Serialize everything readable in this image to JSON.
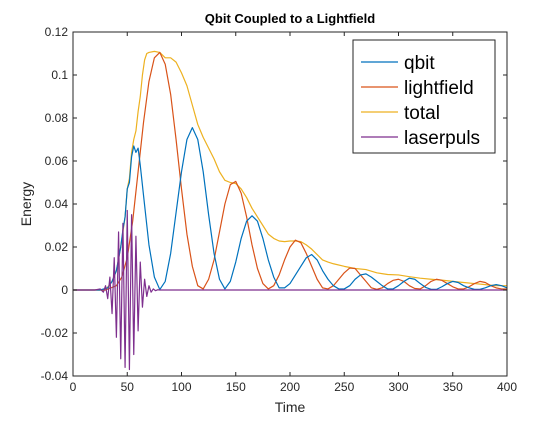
{
  "chart_data": {
    "type": "line",
    "title": "Qbit Coupled to a Lightfield",
    "xlabel": "Time",
    "ylabel": "Energy",
    "xlim": [
      0,
      400
    ],
    "ylim": [
      -0.04,
      0.12
    ],
    "xticks": [
      0,
      50,
      100,
      150,
      200,
      250,
      300,
      350,
      400
    ],
    "xtick_labels": [
      "0",
      "50",
      "100",
      "150",
      "200",
      "250",
      "300",
      "350",
      "400"
    ],
    "yticks": [
      -0.04,
      -0.02,
      0,
      0.02,
      0.04,
      0.06,
      0.08,
      0.1,
      0.12
    ],
    "ytick_labels": [
      "-0.04",
      "-0.02",
      "0",
      "0.02",
      "0.04",
      "0.06",
      "0.08",
      "0.1",
      "0.12"
    ],
    "grid": false,
    "legend_position": "top-right",
    "series": [
      {
        "name": "qbit",
        "color": "#0072BD",
        "x": [
          0,
          25,
          32,
          36,
          40,
          44,
          46,
          48,
          50,
          52,
          54,
          56,
          58,
          60,
          62,
          65,
          70,
          75,
          80,
          85,
          90,
          95,
          100,
          105,
          110,
          115,
          120,
          125,
          130,
          135,
          140,
          145,
          150,
          155,
          160,
          165,
          170,
          175,
          180,
          185,
          190,
          195,
          200,
          205,
          210,
          215,
          220,
          225,
          230,
          235,
          240,
          245,
          250,
          255,
          260,
          265,
          270,
          275,
          280,
          285,
          290,
          295,
          300,
          305,
          310,
          315,
          320,
          325,
          330,
          335,
          340,
          345,
          350,
          355,
          360,
          365,
          370,
          375,
          380,
          385,
          390,
          395,
          400
        ],
        "y": [
          0,
          0,
          0.001,
          0.004,
          0.009,
          0.02,
          0.028,
          0.034,
          0.047,
          0.05,
          0.062,
          0.067,
          0.064,
          0.066,
          0.058,
          0.044,
          0.021,
          0.006,
          0.0002,
          0.004,
          0.017,
          0.036,
          0.055,
          0.07,
          0.0755,
          0.07,
          0.055,
          0.035,
          0.017,
          0.005,
          0.0005,
          0.004,
          0.013,
          0.024,
          0.032,
          0.0345,
          0.032,
          0.024,
          0.014,
          0.006,
          0.001,
          0.001,
          0.003,
          0.007,
          0.011,
          0.015,
          0.0165,
          0.014,
          0.009,
          0.005,
          0.002,
          0.0005,
          0.0005,
          0.002,
          0.005,
          0.007,
          0.0075,
          0.006,
          0.004,
          0.002,
          0.0005,
          0.0005,
          0.002,
          0.004,
          0.0055,
          0.005,
          0.003,
          0.0012,
          0.0003,
          0.0003,
          0.0015,
          0.003,
          0.004,
          0.0035,
          0.002,
          0.001,
          0.0003,
          0.0003,
          0.001,
          0.002,
          0.0025,
          0.002,
          0.001
        ]
      },
      {
        "name": "lightfield",
        "color": "#D95319",
        "x": [
          0,
          30,
          40,
          45,
          50,
          55,
          60,
          65,
          70,
          75,
          80,
          85,
          90,
          95,
          100,
          105,
          110,
          115,
          120,
          125,
          130,
          135,
          140,
          145,
          150,
          155,
          160,
          165,
          170,
          175,
          180,
          185,
          190,
          195,
          200,
          205,
          210,
          215,
          220,
          225,
          230,
          235,
          240,
          245,
          250,
          255,
          260,
          265,
          270,
          275,
          280,
          285,
          290,
          295,
          300,
          305,
          310,
          315,
          320,
          325,
          330,
          335,
          340,
          345,
          350,
          355,
          360,
          365,
          370,
          375,
          380,
          385,
          390,
          395,
          400
        ],
        "y": [
          0,
          0,
          0.002,
          0.006,
          0.015,
          0.032,
          0.055,
          0.078,
          0.097,
          0.108,
          0.1105,
          0.105,
          0.091,
          0.07,
          0.047,
          0.026,
          0.011,
          0.002,
          0.0005,
          0.005,
          0.014,
          0.027,
          0.04,
          0.049,
          0.0505,
          0.045,
          0.034,
          0.021,
          0.01,
          0.003,
          0.0005,
          0.002,
          0.007,
          0.014,
          0.02,
          0.0232,
          0.022,
          0.017,
          0.011,
          0.005,
          0.001,
          0.0005,
          0.002,
          0.005,
          0.008,
          0.0102,
          0.01,
          0.007,
          0.004,
          0.001,
          0.0003,
          0.001,
          0.003,
          0.0045,
          0.005,
          0.004,
          0.002,
          0.0007,
          0.0005,
          0.002,
          0.004,
          0.005,
          0.0045,
          0.003,
          0.0015,
          0.0005,
          0.0005,
          0.0015,
          0.003,
          0.004,
          0.0035,
          0.002,
          0.001,
          0.0005,
          0.0005
        ]
      },
      {
        "name": "total",
        "color": "#EDB120",
        "x": [
          0,
          30,
          36,
          40,
          44,
          48,
          50,
          52,
          54,
          56,
          58,
          60,
          62,
          64,
          66,
          68,
          70,
          75,
          80,
          85,
          90,
          95,
          100,
          105,
          110,
          115,
          120,
          125,
          130,
          135,
          140,
          145,
          150,
          155,
          160,
          165,
          170,
          175,
          180,
          185,
          190,
          195,
          200,
          205,
          210,
          215,
          220,
          225,
          230,
          235,
          240,
          250,
          260,
          270,
          280,
          290,
          300,
          310,
          320,
          330,
          340,
          350,
          360,
          370,
          380,
          390,
          400
        ],
        "y": [
          0,
          0,
          0.004,
          0.009,
          0.02,
          0.034,
          0.047,
          0.052,
          0.064,
          0.07,
          0.074,
          0.083,
          0.09,
          0.1,
          0.107,
          0.11,
          0.1105,
          0.111,
          0.1105,
          0.108,
          0.108,
          0.106,
          0.101,
          0.095,
          0.086,
          0.077,
          0.071,
          0.066,
          0.061,
          0.055,
          0.051,
          0.05,
          0.0495,
          0.047,
          0.043,
          0.038,
          0.034,
          0.03,
          0.026,
          0.024,
          0.0228,
          0.0225,
          0.0228,
          0.0228,
          0.0225,
          0.021,
          0.019,
          0.0165,
          0.014,
          0.013,
          0.0122,
          0.011,
          0.01,
          0.0095,
          0.008,
          0.0072,
          0.007,
          0.0062,
          0.0055,
          0.005,
          0.0046,
          0.004,
          0.0035,
          0.003,
          0.0025,
          0.002,
          0.002
        ]
      },
      {
        "name": "laserpuls",
        "color": "#7E2F8E",
        "x": [
          0,
          20,
          25,
          28,
          30,
          32,
          34,
          36,
          38,
          40,
          42,
          44,
          46,
          48,
          50,
          52,
          54,
          56,
          58,
          60,
          62,
          64,
          66,
          68,
          70,
          72,
          74,
          76,
          78,
          80,
          85,
          90,
          100,
          150,
          200,
          250,
          300,
          350,
          400
        ],
        "y": [
          0,
          0,
          0.0005,
          -0.001,
          0.002,
          -0.004,
          0.006,
          -0.011,
          0.015,
          -0.022,
          0.027,
          -0.032,
          0.031,
          -0.036,
          0.037,
          -0.037,
          0.035,
          -0.03,
          0.025,
          -0.019,
          0.013,
          -0.008,
          0.005,
          -0.003,
          0.002,
          -0.001,
          0.0005,
          -0.0003,
          0.0001,
          0,
          0,
          0,
          0,
          0,
          0,
          0,
          0,
          0,
          0
        ]
      }
    ]
  }
}
